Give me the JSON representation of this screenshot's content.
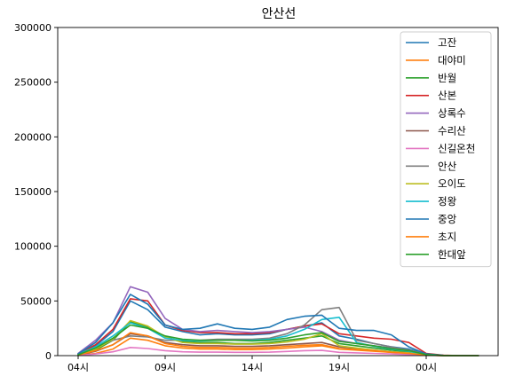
{
  "chart_data": {
    "type": "line",
    "title": "안산선",
    "xlabel": "",
    "ylabel": "",
    "x": [
      "04시",
      "05시",
      "06시",
      "07시",
      "08시",
      "09시",
      "10시",
      "11시",
      "12시",
      "13시",
      "14시",
      "15시",
      "16시",
      "17시",
      "18시",
      "19시",
      "20시",
      "21시",
      "22시",
      "23시",
      "00시",
      "01시",
      "02시",
      "03시"
    ],
    "x_ticks": [
      "04시",
      "09시",
      "14시",
      "19시",
      "00시"
    ],
    "y_ticks": [
      0,
      50000,
      100000,
      150000,
      200000,
      250000,
      300000
    ],
    "ylim": [
      0,
      300000
    ],
    "grid": false,
    "legend_position": "top-right",
    "series": [
      {
        "name": "고잔",
        "color": "#1f77b4",
        "values": [
          1500,
          9000,
          22000,
          50000,
          42000,
          26000,
          22000,
          19000,
          20000,
          19000,
          19000,
          20000,
          24000,
          27000,
          30000,
          18000,
          15000,
          11000,
          8000,
          6000,
          1500,
          200,
          0,
          0
        ]
      },
      {
        "name": "대야미",
        "color": "#ff7f0e",
        "values": [
          300,
          2000,
          6000,
          16000,
          14000,
          9000,
          7000,
          6000,
          6000,
          5500,
          5500,
          6000,
          7000,
          8000,
          9000,
          6000,
          5000,
          4000,
          3000,
          2000,
          500,
          50,
          0,
          0
        ]
      },
      {
        "name": "반월",
        "color": "#2ca02c",
        "values": [
          600,
          5000,
          14000,
          31000,
          26000,
          17000,
          13000,
          12000,
          12000,
          11000,
          11000,
          12000,
          14000,
          16000,
          18000,
          11000,
          9000,
          7000,
          5000,
          3500,
          800,
          100,
          0,
          0
        ]
      },
      {
        "name": "산본",
        "color": "#d62728",
        "values": [
          1500,
          10000,
          24000,
          52000,
          50000,
          28000,
          23000,
          21000,
          21000,
          20000,
          20000,
          21000,
          24000,
          27000,
          29000,
          20000,
          18000,
          16000,
          15000,
          12000,
          2000,
          300,
          0,
          0
        ]
      },
      {
        "name": "상록수",
        "color": "#9467bd",
        "values": [
          2000,
          14000,
          30000,
          63000,
          58000,
          34000,
          24000,
          22000,
          23000,
          22000,
          21000,
          22000,
          24000,
          26000,
          22000,
          14000,
          11000,
          9000,
          7000,
          5000,
          1200,
          200,
          0,
          0
        ]
      },
      {
        "name": "수리산",
        "color": "#8c564b",
        "values": [
          400,
          4000,
          10000,
          20000,
          18000,
          12000,
          10000,
          9000,
          9000,
          8500,
          8500,
          9000,
          10000,
          11000,
          12000,
          8000,
          6500,
          5000,
          3500,
          2500,
          600,
          80,
          0,
          0
        ]
      },
      {
        "name": "신길온천",
        "color": "#e377c2",
        "values": [
          200,
          1500,
          3500,
          7500,
          6500,
          4500,
          3500,
          3200,
          3200,
          3000,
          3000,
          3200,
          3800,
          4500,
          4800,
          3000,
          2500,
          2000,
          1500,
          1000,
          300,
          50,
          0,
          0
        ]
      },
      {
        "name": "안산",
        "color": "#7f7f7f",
        "values": [
          800,
          7000,
          14000,
          18000,
          17000,
          14000,
          14000,
          14000,
          15000,
          15000,
          15000,
          16000,
          20000,
          28000,
          42000,
          44000,
          14000,
          11000,
          8000,
          5000,
          1200,
          150,
          0,
          0
        ]
      },
      {
        "name": "오이도",
        "color": "#bcbd22",
        "values": [
          800,
          6000,
          15000,
          32000,
          27000,
          17000,
          12000,
          11000,
          11000,
          10500,
          10500,
          11000,
          12500,
          15000,
          20000,
          9000,
          7000,
          5000,
          3500,
          2500,
          600,
          80,
          0,
          0
        ]
      },
      {
        "name": "정왕",
        "color": "#17becf",
        "values": [
          1200,
          8000,
          18000,
          30000,
          25000,
          16000,
          14000,
          13500,
          14000,
          14000,
          14000,
          15000,
          18000,
          24000,
          33000,
          35000,
          12000,
          8500,
          6000,
          4000,
          900,
          100,
          0,
          0
        ]
      },
      {
        "name": "중앙",
        "color": "#1f77b4",
        "values": [
          1500,
          12000,
          30000,
          56000,
          47000,
          28000,
          24000,
          25000,
          29000,
          25000,
          24000,
          26000,
          33000,
          36000,
          37000,
          25000,
          23000,
          23000,
          19000,
          8000,
          1500,
          200,
          0,
          0
        ]
      },
      {
        "name": "초지",
        "color": "#ff7f0e",
        "values": [
          600,
          4500,
          10000,
          21000,
          18000,
          11000,
          8500,
          7500,
          7500,
          7000,
          7000,
          7500,
          8500,
          9500,
          10000,
          6500,
          5500,
          4500,
          3000,
          2000,
          500,
          60,
          0,
          0
        ]
      },
      {
        "name": "한대앞",
        "color": "#2ca02c",
        "values": [
          800,
          7000,
          16000,
          28000,
          25000,
          18000,
          15000,
          14000,
          14000,
          14000,
          13500,
          14000,
          16000,
          19000,
          21000,
          13000,
          11000,
          9000,
          6500,
          4500,
          1000,
          120,
          0,
          0
        ]
      }
    ]
  }
}
